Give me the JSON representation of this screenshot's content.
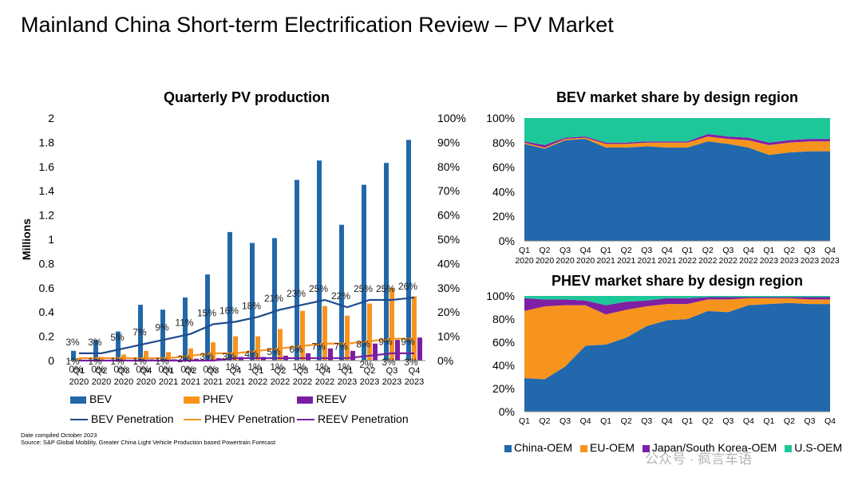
{
  "page": {
    "title": "Mainland China Short-term Electrification Review – PV Market",
    "footnote": {
      "line1": "Date compiled October 2023",
      "line2": "Source: S&P Global Mobility, Greater China Light Vehicle Production based Powertrain Forecast"
    },
    "watermark": "公众号 · 疯言车语"
  },
  "colors": {
    "bev": "#2268a9",
    "bev_line": "#1e4b8c",
    "phev": "#f7931e",
    "reev": "#7b1fa2",
    "china_oem": "#2168ad",
    "eu_oem": "#f7941d",
    "jpsk_oem": "#7f1fa3",
    "us_oem": "#1dc79a"
  },
  "legend_left": {
    "bev": "BEV",
    "phev": "PHEV",
    "reev": "REEV",
    "bev_pen": "BEV Penetration",
    "phev_pen": "PHEV Penetration",
    "reev_pen": "REEV Penetration"
  },
  "legend_share": {
    "china": "China-OEM",
    "eu": "EU-OEM",
    "jpsk": "Japan/South Korea-OEM",
    "us": "U.S-OEM"
  },
  "chart_data": [
    {
      "type": "bar",
      "title": "Quarterly PV production",
      "ylabel": "Millions",
      "ylim": [
        0,
        2
      ],
      "y_ticks": [
        "0",
        "0.2",
        "0.4",
        "0.6",
        "0.8",
        "1",
        "1.2",
        "1.4",
        "1.6",
        "1.8",
        "2"
      ],
      "y2lim": [
        0,
        100
      ],
      "y2_ticks": [
        "0%",
        "10%",
        "20%",
        "30%",
        "40%",
        "50%",
        "60%",
        "70%",
        "80%",
        "90%",
        "100%"
      ],
      "categories": [
        [
          "Q1",
          "2020"
        ],
        [
          "Q2",
          "2020"
        ],
        [
          "Q3",
          "2020"
        ],
        [
          "Q4",
          "2020"
        ],
        [
          "Q1",
          "2021"
        ],
        [
          "Q2",
          "2021"
        ],
        [
          "Q3",
          "2021"
        ],
        [
          "Q4",
          "2021"
        ],
        [
          "Q1",
          "2022"
        ],
        [
          "Q2",
          "2022"
        ],
        [
          "Q3",
          "2022"
        ],
        [
          "Q4",
          "2022"
        ],
        [
          "Q1",
          "2023"
        ],
        [
          "Q2",
          "2023"
        ],
        [
          "Q3",
          "2023"
        ],
        [
          "Q4",
          "2023"
        ]
      ],
      "series": [
        {
          "name": "BEV",
          "kind": "bar",
          "values": [
            0.08,
            0.17,
            0.24,
            0.46,
            0.42,
            0.52,
            0.71,
            1.06,
            0.97,
            1.01,
            1.49,
            1.65,
            1.12,
            1.45,
            1.63,
            1.82
          ]
        },
        {
          "name": "PHEV",
          "kind": "bar",
          "values": [
            0.02,
            0.03,
            0.05,
            0.08,
            0.07,
            0.1,
            0.15,
            0.2,
            0.2,
            0.26,
            0.41,
            0.45,
            0.37,
            0.47,
            0.6,
            0.53
          ]
        },
        {
          "name": "REEV",
          "kind": "bar",
          "values": [
            0.003,
            0.005,
            0.007,
            0.01,
            0.01,
            0.015,
            0.02,
            0.03,
            0.03,
            0.04,
            0.06,
            0.1,
            0.08,
            0.14,
            0.17,
            0.19
          ]
        },
        {
          "name": "BEV Penetration",
          "kind": "line",
          "axis": "right",
          "values": [
            3,
            3,
            5,
            7,
            9,
            11,
            15,
            16,
            18,
            21,
            23,
            25,
            22,
            25,
            25,
            26
          ],
          "labels": [
            "3%",
            "3%",
            "5%",
            "7%",
            "9%",
            "11%",
            "15%",
            "16%",
            "18%",
            "21%",
            "23%",
            "25%",
            "22%",
            "25%",
            "25%",
            "26%"
          ]
        },
        {
          "name": "PHEV Penetration",
          "kind": "line",
          "axis": "right",
          "values": [
            1,
            1,
            1,
            1,
            1,
            2,
            3,
            3,
            4,
            5,
            6,
            7,
            7,
            8,
            9,
            9
          ],
          "labels": [
            "1%",
            "1%",
            "1%",
            "1%",
            "1%",
            "2%",
            "3%",
            "3%",
            "4%",
            "5%",
            "6%",
            "7%",
            "7%",
            "8%",
            "9%",
            "9%"
          ]
        },
        {
          "name": "REEV Penetration",
          "kind": "line",
          "axis": "right",
          "values": [
            0,
            0,
            0,
            0,
            0,
            0,
            0,
            1,
            1,
            1,
            1,
            1,
            1,
            2,
            3,
            3
          ],
          "labels": [
            "0%",
            "0%",
            "0%",
            "0%",
            "0%",
            "0%",
            "0%",
            "1%",
            "1%",
            "1%",
            "1%",
            "1%",
            "1%",
            "2%",
            "3%",
            "3%"
          ]
        }
      ]
    },
    {
      "type": "area",
      "stacked": true,
      "title": "BEV market share by design region",
      "ylim": [
        0,
        100
      ],
      "y_ticks": [
        "0%",
        "20%",
        "40%",
        "60%",
        "80%",
        "100%"
      ],
      "categories": [
        [
          "Q1",
          "2020"
        ],
        [
          "Q2",
          "2020"
        ],
        [
          "Q3",
          "2020"
        ],
        [
          "Q4",
          "2020"
        ],
        [
          "Q1",
          "2021"
        ],
        [
          "Q2",
          "2021"
        ],
        [
          "Q3",
          "2021"
        ],
        [
          "Q4",
          "2021"
        ],
        [
          "Q1",
          "2022"
        ],
        [
          "Q2",
          "2022"
        ],
        [
          "Q3",
          "2022"
        ],
        [
          "Q4",
          "2022"
        ],
        [
          "Q1",
          "2023"
        ],
        [
          "Q2",
          "2023"
        ],
        [
          "Q3",
          "2023"
        ],
        [
          "Q4",
          "2023"
        ]
      ],
      "series": [
        {
          "name": "China-OEM",
          "values": [
            79,
            75,
            82,
            83,
            76,
            76,
            77,
            76,
            76,
            81,
            79,
            76,
            70,
            72,
            73,
            73
          ]
        },
        {
          "name": "EU-OEM",
          "values": [
            1,
            1,
            1,
            1,
            3,
            3,
            3,
            4,
            4,
            4,
            4,
            6,
            8,
            8,
            8,
            8
          ]
        },
        {
          "name": "Japan/South Korea-OEM",
          "values": [
            1,
            2,
            1,
            1,
            1,
            1,
            1,
            1,
            1,
            2,
            2,
            2,
            2,
            2,
            2,
            2
          ]
        },
        {
          "name": "U.S-OEM",
          "values": [
            19,
            22,
            16,
            15,
            20,
            20,
            19,
            19,
            19,
            13,
            15,
            16,
            20,
            18,
            17,
            17
          ]
        }
      ]
    },
    {
      "type": "area",
      "stacked": true,
      "title": "PHEV market share by design region",
      "ylim": [
        0,
        100
      ],
      "y_ticks": [
        "0%",
        "20%",
        "40%",
        "60%",
        "80%",
        "100%"
      ],
      "categories": [
        "Q1",
        "Q2",
        "Q3",
        "Q4",
        "Q1",
        "Q2",
        "Q3",
        "Q4",
        "Q1",
        "Q2",
        "Q3",
        "Q4",
        "Q1",
        "Q2",
        "Q3",
        "Q4"
      ],
      "series": [
        {
          "name": "China-OEM",
          "values": [
            29,
            28,
            39,
            57,
            58,
            64,
            74,
            79,
            80,
            87,
            86,
            92,
            93,
            94,
            93,
            93
          ]
        },
        {
          "name": "EU-OEM",
          "values": [
            58,
            63,
            53,
            35,
            26,
            24,
            17,
            14,
            13,
            10,
            11,
            6,
            5,
            4,
            4,
            4
          ]
        },
        {
          "name": "Japan/South Korea-OEM",
          "values": [
            11,
            6,
            5,
            4,
            8,
            7,
            5,
            5,
            5,
            2,
            2,
            1,
            1,
            1,
            2,
            2
          ]
        },
        {
          "name": "U.S-OEM",
          "values": [
            2,
            3,
            3,
            4,
            8,
            5,
            4,
            2,
            2,
            1,
            1,
            1,
            1,
            1,
            1,
            1
          ]
        }
      ]
    }
  ]
}
